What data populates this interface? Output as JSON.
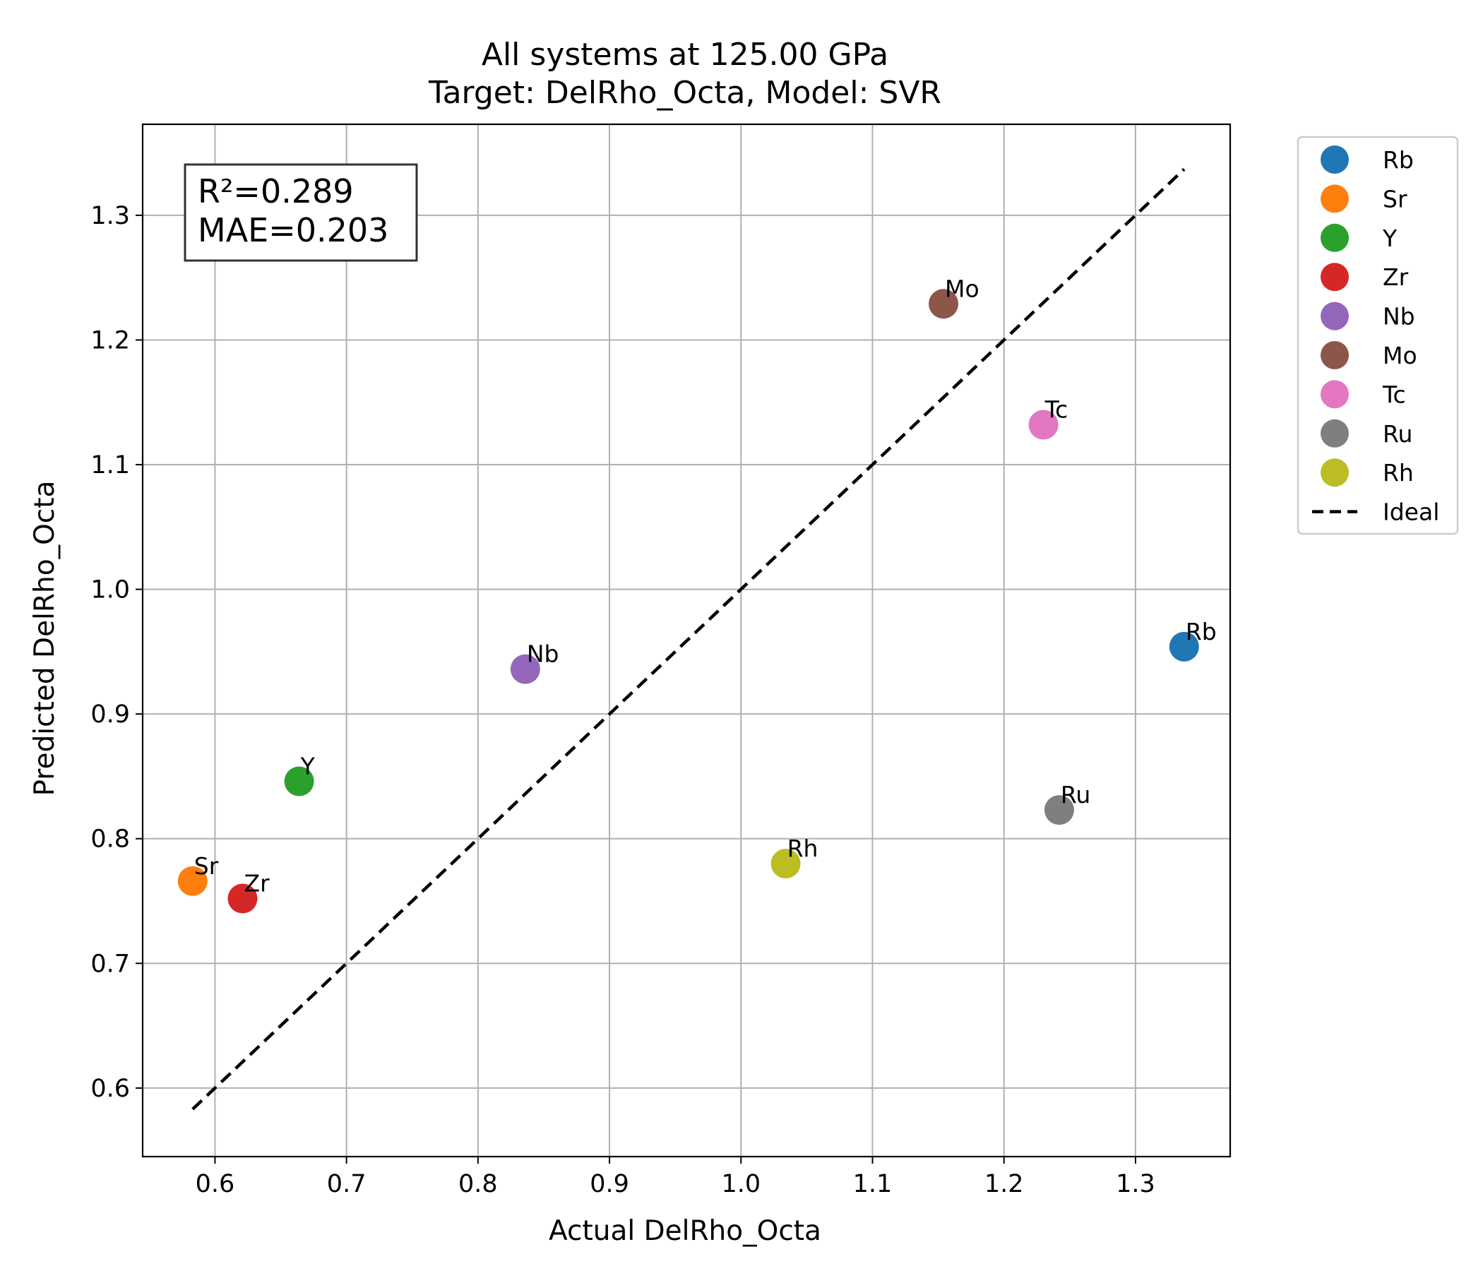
{
  "chart_data": {
    "type": "scatter",
    "title": "All systems at 125.00 GPa",
    "subtitle": "Target: DelRho_Octa, Model: SVR",
    "xlabel": "Actual DelRho_Octa",
    "ylabel": "Predicted DelRho_Octa",
    "xlim": [
      0.545,
      1.372
    ],
    "ylim": [
      0.545,
      1.373
    ],
    "xticks": [
      0.6,
      0.7,
      0.8,
      0.9,
      1.0,
      1.1,
      1.2,
      1.3
    ],
    "yticks": [
      0.6,
      0.7,
      0.8,
      0.9,
      1.0,
      1.1,
      1.2,
      1.3
    ],
    "grid": true,
    "legend_position": "outside-top-right",
    "stats": {
      "r2": "R²=0.289",
      "mae": "MAE=0.203"
    },
    "series": [
      {
        "name": "Rb",
        "x": [
          1.337
        ],
        "y": [
          0.954
        ],
        "color": "#1f77b4",
        "label": "Rb"
      },
      {
        "name": "Sr",
        "x": [
          0.583
        ],
        "y": [
          0.766
        ],
        "color": "#ff7f0e",
        "label": "Sr"
      },
      {
        "name": "Y",
        "x": [
          0.664
        ],
        "y": [
          0.846
        ],
        "color": "#2ca02c",
        "label": "Y"
      },
      {
        "name": "Zr",
        "x": [
          0.621
        ],
        "y": [
          0.752
        ],
        "color": "#d62728",
        "label": "Zr"
      },
      {
        "name": "Nb",
        "x": [
          0.836
        ],
        "y": [
          0.936
        ],
        "color": "#9467bd",
        "label": "Nb"
      },
      {
        "name": "Mo",
        "x": [
          1.154
        ],
        "y": [
          1.229
        ],
        "color": "#8c564b",
        "label": "Mo"
      },
      {
        "name": "Tc",
        "x": [
          1.23
        ],
        "y": [
          1.132
        ],
        "color": "#e377c2",
        "label": "Tc"
      },
      {
        "name": "Ru",
        "x": [
          1.242
        ],
        "y": [
          0.823
        ],
        "color": "#7f7f7f",
        "label": "Ru"
      },
      {
        "name": "Rh",
        "x": [
          1.034
        ],
        "y": [
          0.78
        ],
        "color": "#bcbd22",
        "label": "Rh"
      }
    ],
    "ideal_line": {
      "name": "Ideal",
      "x": [
        0.583,
        1.337
      ],
      "y": [
        0.583,
        1.337
      ],
      "color": "#000000",
      "style": "dashed"
    }
  }
}
